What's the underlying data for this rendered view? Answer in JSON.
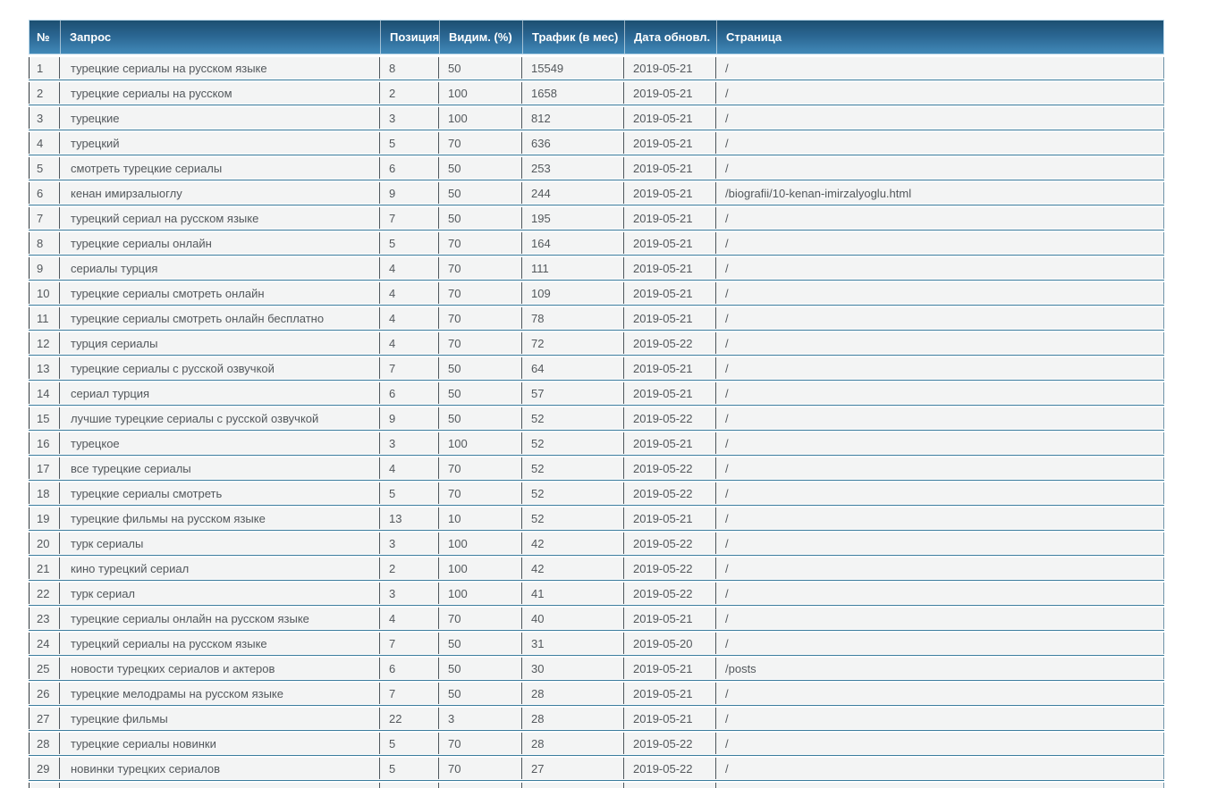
{
  "table": {
    "columns": [
      "№",
      "Запрос",
      "Позиция",
      "Видим. (%)",
      "Трафик (в мес)",
      "Дата обновл.",
      "Страница"
    ],
    "rows": [
      {
        "num": "1",
        "query": "турецкие сериалы на русском языке",
        "position": "8",
        "visibility": "50",
        "traffic": "15549",
        "updated": "2019-05-21",
        "page": "/"
      },
      {
        "num": "2",
        "query": "турецкие сериалы на русском",
        "position": "2",
        "visibility": "100",
        "traffic": "1658",
        "updated": "2019-05-21",
        "page": "/"
      },
      {
        "num": "3",
        "query": "турецкие",
        "position": "3",
        "visibility": "100",
        "traffic": "812",
        "updated": "2019-05-21",
        "page": "/"
      },
      {
        "num": "4",
        "query": "турецкий",
        "position": "5",
        "visibility": "70",
        "traffic": "636",
        "updated": "2019-05-21",
        "page": "/"
      },
      {
        "num": "5",
        "query": "смотреть турецкие сериалы",
        "position": "6",
        "visibility": "50",
        "traffic": "253",
        "updated": "2019-05-21",
        "page": "/"
      },
      {
        "num": "6",
        "query": "кенан имирзалыоглу",
        "position": "9",
        "visibility": "50",
        "traffic": "244",
        "updated": "2019-05-21",
        "page": "/biografii/10-kenan-imirzalyoglu.html"
      },
      {
        "num": "7",
        "query": "турецкий сериал на русском языке",
        "position": "7",
        "visibility": "50",
        "traffic": "195",
        "updated": "2019-05-21",
        "page": "/"
      },
      {
        "num": "8",
        "query": "турецкие сериалы онлайн",
        "position": "5",
        "visibility": "70",
        "traffic": "164",
        "updated": "2019-05-21",
        "page": "/"
      },
      {
        "num": "9",
        "query": "сериалы турция",
        "position": "4",
        "visibility": "70",
        "traffic": "111",
        "updated": "2019-05-21",
        "page": "/"
      },
      {
        "num": "10",
        "query": "турецкие сериалы смотреть онлайн",
        "position": "4",
        "visibility": "70",
        "traffic": "109",
        "updated": "2019-05-21",
        "page": "/"
      },
      {
        "num": "11",
        "query": "турецкие сериалы смотреть онлайн бесплатно",
        "position": "4",
        "visibility": "70",
        "traffic": "78",
        "updated": "2019-05-21",
        "page": "/"
      },
      {
        "num": "12",
        "query": "турция сериалы",
        "position": "4",
        "visibility": "70",
        "traffic": "72",
        "updated": "2019-05-22",
        "page": "/"
      },
      {
        "num": "13",
        "query": "турецкие сериалы с русской озвучкой",
        "position": "7",
        "visibility": "50",
        "traffic": "64",
        "updated": "2019-05-21",
        "page": "/"
      },
      {
        "num": "14",
        "query": "сериал турция",
        "position": "6",
        "visibility": "50",
        "traffic": "57",
        "updated": "2019-05-21",
        "page": "/"
      },
      {
        "num": "15",
        "query": "лучшие турецкие сериалы с русской озвучкой",
        "position": "9",
        "visibility": "50",
        "traffic": "52",
        "updated": "2019-05-22",
        "page": "/"
      },
      {
        "num": "16",
        "query": "турецкое",
        "position": "3",
        "visibility": "100",
        "traffic": "52",
        "updated": "2019-05-21",
        "page": "/"
      },
      {
        "num": "17",
        "query": "все турецкие сериалы",
        "position": "4",
        "visibility": "70",
        "traffic": "52",
        "updated": "2019-05-22",
        "page": "/"
      },
      {
        "num": "18",
        "query": "турецкие сериалы смотреть",
        "position": "5",
        "visibility": "70",
        "traffic": "52",
        "updated": "2019-05-22",
        "page": "/"
      },
      {
        "num": "19",
        "query": "турецкие фильмы на русском языке",
        "position": "13",
        "visibility": "10",
        "traffic": "52",
        "updated": "2019-05-21",
        "page": "/"
      },
      {
        "num": "20",
        "query": "турк сериалы",
        "position": "3",
        "visibility": "100",
        "traffic": "42",
        "updated": "2019-05-22",
        "page": "/"
      },
      {
        "num": "21",
        "query": "кино турецкий сериал",
        "position": "2",
        "visibility": "100",
        "traffic": "42",
        "updated": "2019-05-22",
        "page": "/"
      },
      {
        "num": "22",
        "query": "турк сериал",
        "position": "3",
        "visibility": "100",
        "traffic": "41",
        "updated": "2019-05-22",
        "page": "/"
      },
      {
        "num": "23",
        "query": "турецкие сериалы онлайн на русском языке",
        "position": "4",
        "visibility": "70",
        "traffic": "40",
        "updated": "2019-05-21",
        "page": "/"
      },
      {
        "num": "24",
        "query": "турецкий сериалы на русском языке",
        "position": "7",
        "visibility": "50",
        "traffic": "31",
        "updated": "2019-05-20",
        "page": "/"
      },
      {
        "num": "25",
        "query": "новости турецких сериалов и актеров",
        "position": "6",
        "visibility": "50",
        "traffic": "30",
        "updated": "2019-05-21",
        "page": "/posts"
      },
      {
        "num": "26",
        "query": "турецкие мелодрамы на русском языке",
        "position": "7",
        "visibility": "50",
        "traffic": "28",
        "updated": "2019-05-21",
        "page": "/"
      },
      {
        "num": "27",
        "query": "турецкие фильмы",
        "position": "22",
        "visibility": "3",
        "traffic": "28",
        "updated": "2019-05-21",
        "page": "/"
      },
      {
        "num": "28",
        "query": "турецкие сериалы новинки",
        "position": "5",
        "visibility": "70",
        "traffic": "28",
        "updated": "2019-05-22",
        "page": "/"
      },
      {
        "num": "29",
        "query": "новинки турецких сериалов",
        "position": "5",
        "visibility": "70",
        "traffic": "27",
        "updated": "2019-05-22",
        "page": "/"
      }
    ]
  },
  "colors": {
    "header_gradient_top": "#1c4f71",
    "header_gradient_bottom": "#4189b8",
    "header_text": "#ffffff",
    "header_outer_border": "#b9d6e8",
    "row_background": "#f3f4f4",
    "row_text": "#53585c",
    "cell_border": "#4e565c",
    "row_separator_line": "#35789a"
  }
}
